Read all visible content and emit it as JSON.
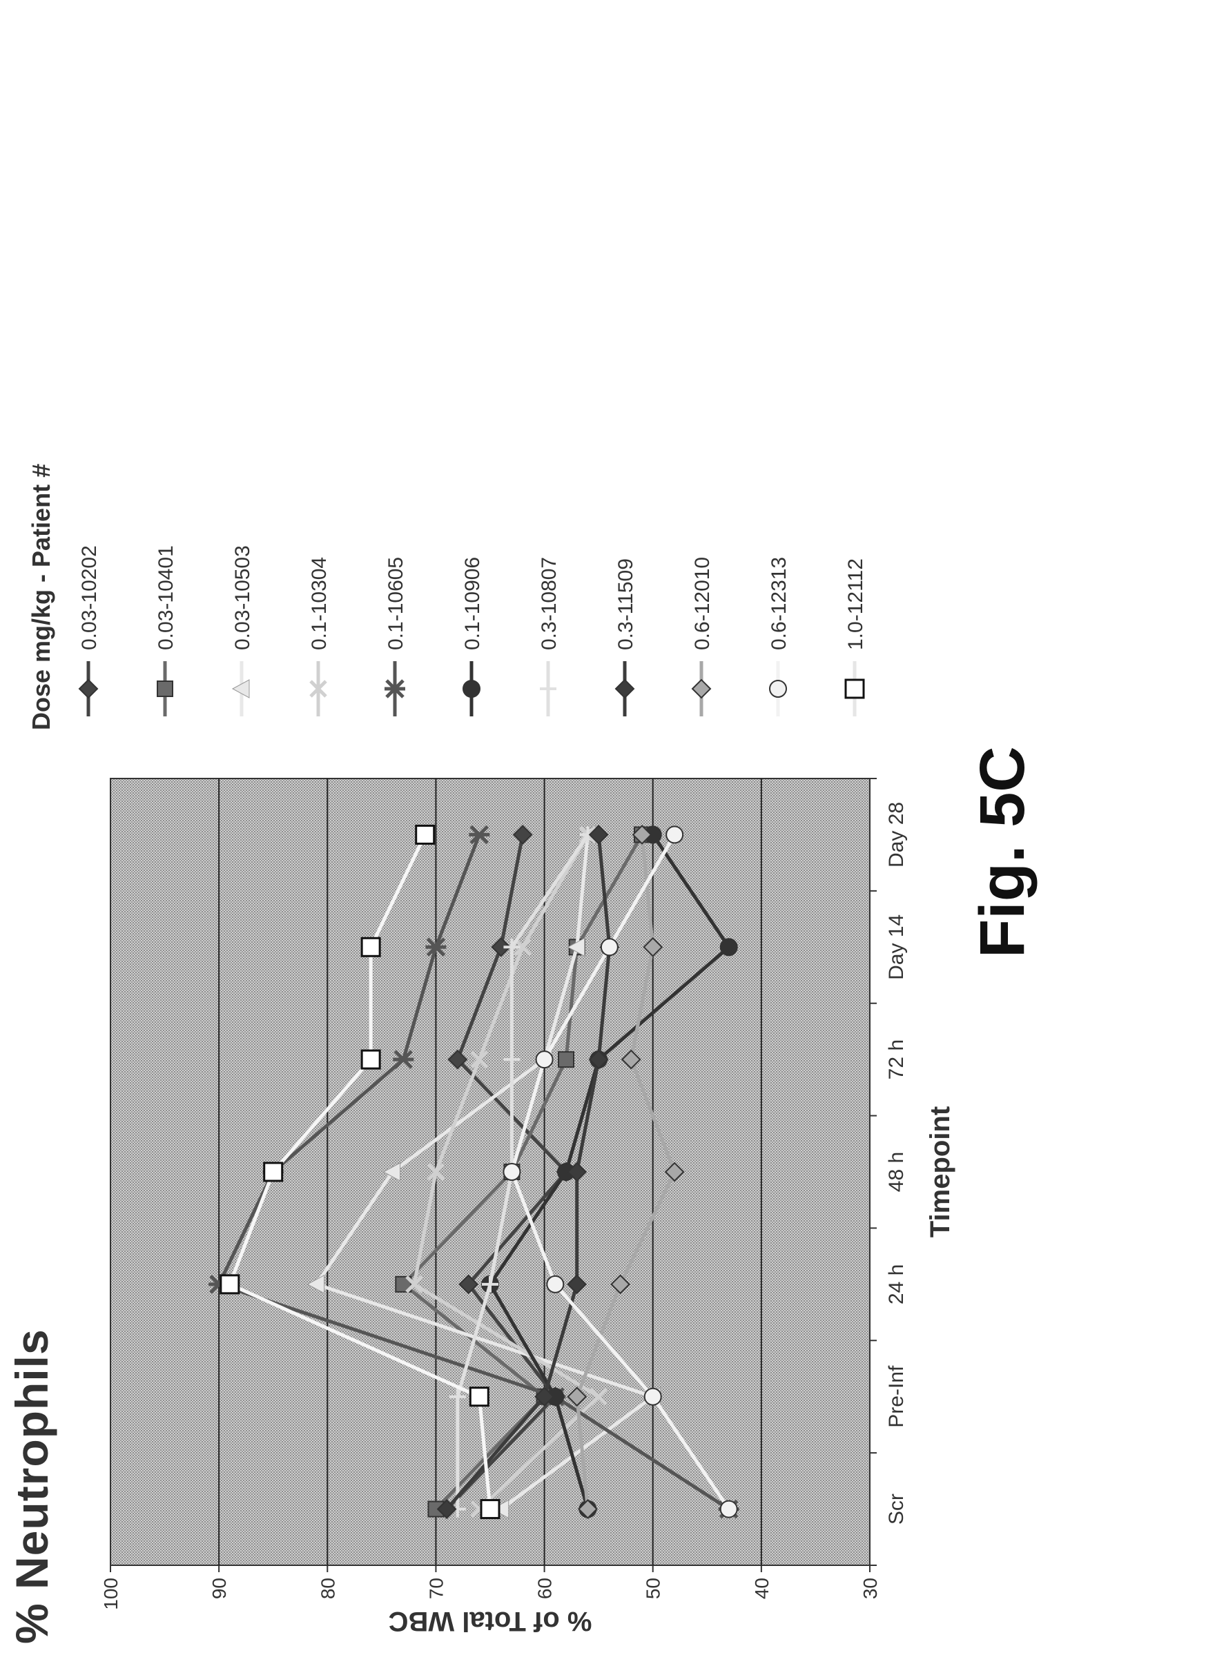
{
  "title": "% Neutrophils",
  "figure_label": "Fig. 5C",
  "chart_data": {
    "type": "line",
    "xlabel": "Timepoint",
    "ylabel": "% of Total WBC",
    "legend_title": "Dose mg/kg - Patient #",
    "legend_position": "right",
    "grid": true,
    "ylim": [
      30,
      100
    ],
    "yticks": [
      "30",
      "40",
      "50",
      "60",
      "70",
      "80",
      "90",
      "100"
    ],
    "categories": [
      "Scr",
      "Pre-Inf",
      "24 h",
      "48 h",
      "72 h",
      "Day 14",
      "Day 28"
    ],
    "series": [
      {
        "name": "0.03-10202",
        "color": "#444444",
        "marker": "diamond",
        "values": [
          69,
          59,
          67,
          58,
          68,
          64,
          62
        ]
      },
      {
        "name": "0.03-10401",
        "color": "#6a6a6a",
        "marker": "square",
        "values": [
          70,
          60,
          73,
          63,
          58,
          57,
          51
        ]
      },
      {
        "name": "0.03-10503",
        "color": "#e8e8e8",
        "marker": "triangle",
        "values": [
          64,
          50,
          81,
          74,
          60,
          57,
          56
        ]
      },
      {
        "name": "0.1-10304",
        "color": "#d0d0d0",
        "marker": "x",
        "values": [
          66,
          55,
          72,
          70,
          66,
          62,
          56
        ]
      },
      {
        "name": "0.1-10605",
        "color": "#555555",
        "marker": "star",
        "values": [
          43,
          59,
          90,
          85,
          73,
          70,
          66
        ]
      },
      {
        "name": "0.1-10906",
        "color": "#333333",
        "marker": "circle",
        "values": [
          56,
          59,
          65,
          58,
          55,
          43,
          50
        ]
      },
      {
        "name": "0.3-10807",
        "color": "#e0e0e0",
        "marker": "plus",
        "values": [
          68,
          68,
          65,
          63,
          63,
          63,
          56
        ]
      },
      {
        "name": "0.3-11509",
        "color": "#3c3c3c",
        "marker": "diamond",
        "values": [
          69,
          60,
          57,
          57,
          55,
          54,
          55
        ]
      },
      {
        "name": "0.6-12010",
        "color": "#a8a8a8",
        "marker": "diamond",
        "values": [
          56,
          57,
          53,
          48,
          52,
          50,
          51
        ]
      },
      {
        "name": "0.6-12313",
        "color": "#f2f2f2",
        "marker": "circle",
        "values": [
          43,
          50,
          59,
          63,
          60,
          54,
          48
        ]
      },
      {
        "name": "1.0-12112",
        "color": "#ffffff",
        "marker": "square-open",
        "values": [
          65,
          66,
          89,
          85,
          76,
          76,
          71
        ]
      }
    ]
  }
}
